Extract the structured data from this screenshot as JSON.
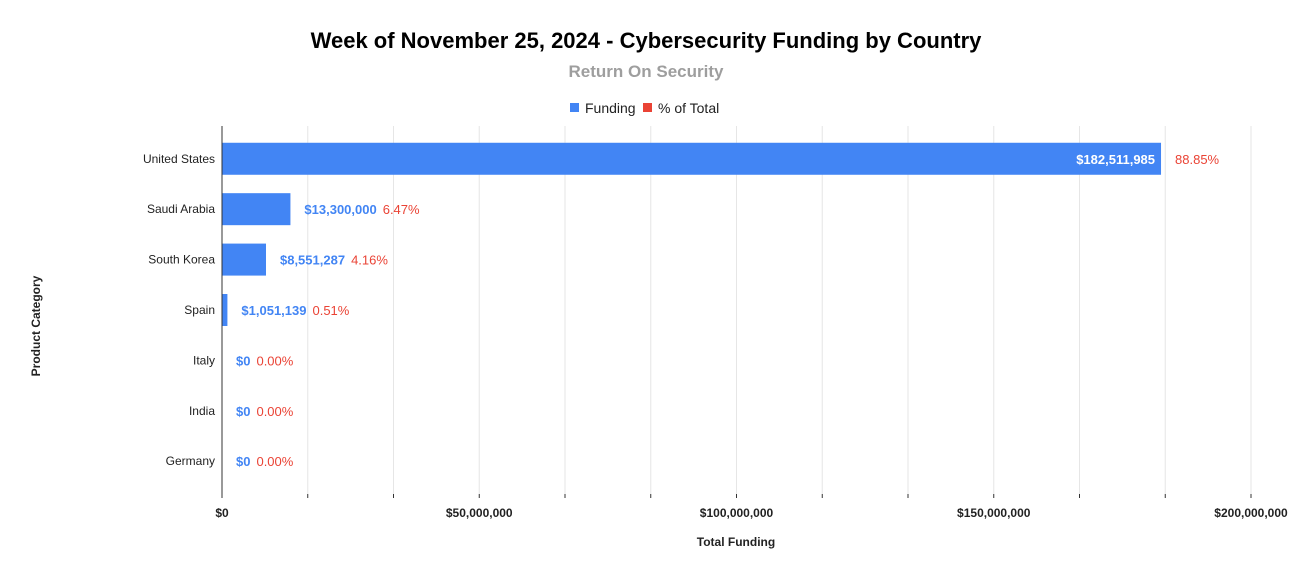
{
  "chart_data": {
    "type": "bar",
    "orientation": "horizontal",
    "title": "Week of November 25, 2024 - Cybersecurity Funding by Country",
    "subtitle": "Return On Security",
    "xlabel": "Total Funding",
    "ylabel": "Product Category",
    "xlim": [
      0,
      200000000
    ],
    "x_ticks": [
      0,
      50000000,
      100000000,
      150000000,
      200000000
    ],
    "x_tick_labels": [
      "$0",
      "$50,000,000",
      "$100,000,000",
      "$150,000,000",
      "$200,000,000"
    ],
    "legend": [
      {
        "name": "Funding",
        "color": "#4285f4"
      },
      {
        "name": "% of Total",
        "color": "#ea4335"
      }
    ],
    "legend_position": "top-center",
    "categories": [
      "United States",
      "Saudi Arabia",
      "South Korea",
      "Spain",
      "Italy",
      "India",
      "Germany"
    ],
    "series": [
      {
        "name": "Funding",
        "color": "#4285f4",
        "values": [
          182511985,
          13300000,
          8551287,
          1051139,
          0,
          0,
          0
        ],
        "labels": [
          "$182,511,985",
          "$13,300,000",
          "$8,551,287",
          "$1,051,139",
          "$0",
          "$0",
          "$0"
        ]
      },
      {
        "name": "% of Total",
        "color": "#ea4335",
        "values": [
          88.85,
          6.47,
          4.16,
          0.51,
          0.0,
          0.0,
          0.0
        ],
        "labels": [
          "88.85%",
          "6.47%",
          "4.16%",
          "0.51%",
          "0.00%",
          "0.00%",
          "0.00%"
        ]
      }
    ]
  }
}
